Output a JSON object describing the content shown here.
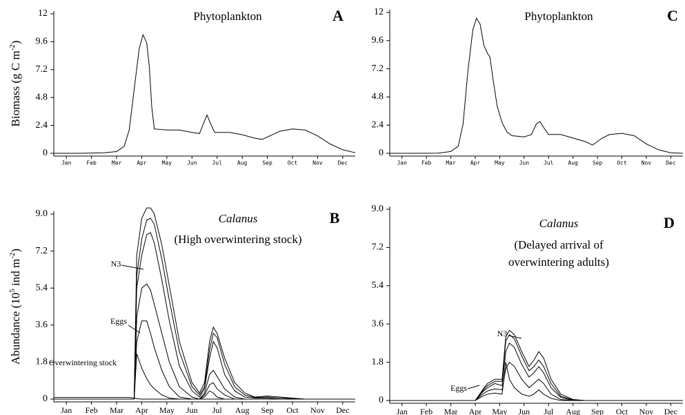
{
  "chart_data": [
    {
      "type": "line",
      "panel_label": "A",
      "title": "Phytoplankton",
      "ylabel": [
        "Biomass (g C m",
        "-2",
        ")"
      ],
      "xlim": [
        0,
        12
      ],
      "xticks": [
        {
          "value": 0.5,
          "label": "Jan"
        },
        {
          "value": 1.5,
          "label": "Feb"
        },
        {
          "value": 2.5,
          "label": "Mar"
        },
        {
          "value": 3.5,
          "label": "Apr"
        },
        {
          "value": 4.5,
          "label": "May"
        },
        {
          "value": 5.5,
          "label": "Jun"
        },
        {
          "value": 6.5,
          "label": "Jul"
        },
        {
          "value": 7.5,
          "label": "Aug"
        },
        {
          "value": 8.5,
          "label": "Sep"
        },
        {
          "value": 9.5,
          "label": "Oct"
        },
        {
          "value": 10.5,
          "label": "Nov"
        },
        {
          "value": 11.5,
          "label": "Dec"
        }
      ],
      "ylim": [
        0,
        12
      ],
      "yticks": [
        0,
        2.4,
        4.8,
        7.2,
        9.6,
        12
      ],
      "x": [
        0,
        1,
        2,
        2.5,
        2.8,
        3.0,
        3.2,
        3.4,
        3.55,
        3.7,
        3.8,
        3.9,
        4.0,
        4.5,
        5.0,
        5.5,
        5.8,
        6.0,
        6.1,
        6.25,
        6.4,
        7.0,
        7.5,
        8.0,
        8.3,
        8.7,
        9.0,
        9.5,
        10.0,
        10.5,
        11.0,
        11.5,
        12
      ],
      "series": [
        {
          "color": "#000000",
          "values": [
            0,
            0,
            0.05,
            0.15,
            0.6,
            2,
            5.5,
            9,
            10.2,
            9.5,
            7.5,
            4,
            2.1,
            2.0,
            2.0,
            1.8,
            1.7,
            2.8,
            3.3,
            2.5,
            1.8,
            1.8,
            1.6,
            1.3,
            1.2,
            1.6,
            1.9,
            2.1,
            2.0,
            1.5,
            0.8,
            0.3,
            0.05
          ]
        }
      ]
    },
    {
      "type": "line",
      "panel_label": "B",
      "title": "Calanus",
      "subtitle": [
        "(High overwintering stock)"
      ],
      "ylabel": [
        "Abundance (10",
        "5",
        " ind m",
        "-2",
        ")"
      ],
      "xlim": [
        0,
        12
      ],
      "xticks": [
        {
          "value": 0.5,
          "label": "Jan"
        },
        {
          "value": 1.5,
          "label": "Feb"
        },
        {
          "value": 2.5,
          "label": "Mar"
        },
        {
          "value": 3.5,
          "label": "Apr"
        },
        {
          "value": 4.5,
          "label": "May"
        },
        {
          "value": 5.5,
          "label": "Jun"
        },
        {
          "value": 6.5,
          "label": "Jul"
        },
        {
          "value": 7.5,
          "label": "Aug"
        },
        {
          "value": 8.5,
          "label": "Sep"
        },
        {
          "value": 9.5,
          "label": "Oct"
        },
        {
          "value": 10.5,
          "label": "Nov"
        },
        {
          "value": 11.5,
          "label": "Dec"
        }
      ],
      "ylim": [
        0,
        9
      ],
      "yticks": [
        0,
        1.8,
        3.6,
        5.4,
        7.2,
        {
          "value": 9,
          "label": "9.0"
        }
      ],
      "x": [
        0,
        1,
        2,
        3,
        3.2,
        3.3,
        3.5,
        3.7,
        3.85,
        4.0,
        4.3,
        4.6,
        5.0,
        5.5,
        5.8,
        6.0,
        6.2,
        6.35,
        6.5,
        6.8,
        7.2,
        7.6,
        8.0,
        8.5,
        9.0,
        10,
        11,
        12
      ],
      "series": [
        {
          "color": "#000000",
          "values": [
            0,
            0,
            0,
            0,
            0,
            7.0,
            8.8,
            9.3,
            9.3,
            9.0,
            7.5,
            5.5,
            2.8,
            0.8,
            0.3,
            0.8,
            2.8,
            3.5,
            3.2,
            2.0,
            0.8,
            0.3,
            0.1,
            0.15,
            0.1,
            0,
            0,
            0
          ]
        },
        {
          "color": "#000000",
          "values": [
            0,
            0,
            0,
            0,
            0,
            6.0,
            7.8,
            8.7,
            8.8,
            8.5,
            6.8,
            4.8,
            2.3,
            0.6,
            0.2,
            0.6,
            2.4,
            3.2,
            3.0,
            1.7,
            0.6,
            0.2,
            0.08,
            0.1,
            0.05,
            0,
            0,
            0
          ]
        },
        {
          "name": "N3",
          "color": "#000000",
          "values": [
            0,
            0,
            0,
            0,
            0,
            5.4,
            7.0,
            8.0,
            8.1,
            7.6,
            5.8,
            3.8,
            1.6,
            0.4,
            0.1,
            0.5,
            2.0,
            2.8,
            2.5,
            1.2,
            0.4,
            0.1,
            0.05,
            0.05,
            0,
            0,
            0,
            0
          ]
        },
        {
          "color": "#000000",
          "values": [
            0,
            0,
            0,
            0,
            0,
            4.0,
            5.4,
            5.6,
            5.3,
            4.6,
            3.2,
            1.8,
            0.6,
            0.1,
            0,
            0.3,
            1.2,
            1.4,
            1.1,
            0.5,
            0.1,
            0,
            0,
            0,
            0,
            0,
            0,
            0
          ]
        },
        {
          "color": "#000000",
          "values": [
            0,
            0,
            0,
            0,
            0,
            2.8,
            3.8,
            3.8,
            3.2,
            2.5,
            1.4,
            0.6,
            0.1,
            0,
            0,
            0.2,
            0.7,
            0.8,
            0.5,
            0.2,
            0,
            0,
            0,
            0,
            0,
            0,
            0,
            0
          ]
        },
        {
          "name": "Eggs",
          "color": "#000000",
          "values": [
            0,
            0,
            0,
            0,
            0,
            2.2,
            1.5,
            1.0,
            0.7,
            0.5,
            0.2,
            0.05,
            0,
            0,
            0,
            0.1,
            0.4,
            0.3,
            0.1,
            0,
            0,
            0,
            0,
            0,
            0,
            0,
            0,
            0
          ]
        },
        {
          "name": "Overwintering stock",
          "color": "#000000",
          "values": [
            0.08,
            0.08,
            0.08,
            0.08,
            0.05,
            0.02,
            0,
            0,
            0,
            0,
            0,
            0,
            0,
            0,
            0,
            0,
            0,
            0,
            0,
            0,
            0,
            0,
            0,
            0,
            0,
            0,
            0,
            0
          ]
        }
      ]
    },
    {
      "type": "line",
      "panel_label": "C",
      "title": "Phytoplankton",
      "xlim": [
        0,
        12
      ],
      "xticks": [
        {
          "value": 0.5,
          "label": "Jan"
        },
        {
          "value": 1.5,
          "label": "Feb"
        },
        {
          "value": 2.5,
          "label": "Mar"
        },
        {
          "value": 3.5,
          "label": "Apr"
        },
        {
          "value": 4.5,
          "label": "May"
        },
        {
          "value": 5.5,
          "label": "Jun"
        },
        {
          "value": 6.5,
          "label": "Jul"
        },
        {
          "value": 7.5,
          "label": "Aug"
        },
        {
          "value": 8.5,
          "label": "Sep"
        },
        {
          "value": 9.5,
          "label": "Oct"
        },
        {
          "value": 10.5,
          "label": "Nov"
        },
        {
          "value": 11.5,
          "label": "Dec"
        }
      ],
      "ylim": [
        0,
        12
      ],
      "yticks": [
        0,
        2.4,
        4.8,
        7.2,
        9.6,
        12
      ],
      "x": [
        0,
        1,
        2,
        2.5,
        2.8,
        3.0,
        3.2,
        3.4,
        3.55,
        3.7,
        3.85,
        4.0,
        4.1,
        4.25,
        4.4,
        4.6,
        4.8,
        5.0,
        5.5,
        5.8,
        6.0,
        6.15,
        6.3,
        6.5,
        7.0,
        7.5,
        8.0,
        8.3,
        8.7,
        9.0,
        9.5,
        10.0,
        10.5,
        11.0,
        11.5,
        12
      ],
      "series": [
        {
          "color": "#000000",
          "values": [
            0,
            0,
            0.02,
            0.15,
            0.6,
            2.5,
            7,
            10.5,
            11.5,
            11,
            9.2,
            8.5,
            8.2,
            6,
            4,
            2.6,
            1.8,
            1.5,
            1.4,
            1.6,
            2.5,
            2.7,
            2.2,
            1.6,
            1.6,
            1.3,
            1.0,
            0.7,
            1.3,
            1.6,
            1.7,
            1.5,
            0.8,
            0.3,
            0.05,
            0
          ]
        }
      ]
    },
    {
      "type": "line",
      "panel_label": "D",
      "title": "Calanus",
      "subtitle": [
        "(Delayed arrival of",
        "overwintering adults)"
      ],
      "xlim": [
        0,
        12
      ],
      "xticks": [
        {
          "value": 0.5,
          "label": "Jan"
        },
        {
          "value": 1.5,
          "label": "Feb"
        },
        {
          "value": 2.5,
          "label": "Mar"
        },
        {
          "value": 3.5,
          "label": "Apr"
        },
        {
          "value": 4.5,
          "label": "May"
        },
        {
          "value": 5.5,
          "label": "Jun"
        },
        {
          "value": 6.5,
          "label": "Jul"
        },
        {
          "value": 7.5,
          "label": "Aug"
        },
        {
          "value": 8.5,
          "label": "Sep"
        },
        {
          "value": 9.5,
          "label": "Oct"
        },
        {
          "value": 10.5,
          "label": "Nov"
        },
        {
          "value": 11.5,
          "label": "Dec"
        }
      ],
      "ylim": [
        0,
        9
      ],
      "yticks": [
        0,
        1.8,
        3.6,
        5.4,
        7.2,
        {
          "value": 9,
          "label": "9.0"
        }
      ],
      "x": [
        0,
        1,
        2,
        3,
        3.5,
        3.8,
        4.0,
        4.3,
        4.6,
        4.75,
        4.9,
        5.1,
        5.4,
        5.7,
        5.9,
        6.1,
        6.3,
        6.6,
        7.0,
        7.5,
        8,
        9,
        10,
        11,
        12
      ],
      "series": [
        {
          "color": "#000000",
          "values": [
            0,
            0,
            0,
            0,
            0,
            0.5,
            0.8,
            1.0,
            1.0,
            3.0,
            3.3,
            3.1,
            2.3,
            1.6,
            1.9,
            2.3,
            2.0,
            1.0,
            0.3,
            0.05,
            0,
            0,
            0,
            0,
            0
          ]
        },
        {
          "color": "#000000",
          "values": [
            0,
            0,
            0,
            0,
            0,
            0.45,
            0.7,
            0.9,
            0.9,
            2.8,
            3.1,
            2.9,
            2.1,
            1.4,
            1.6,
            1.9,
            1.6,
            0.8,
            0.2,
            0.03,
            0,
            0,
            0,
            0,
            0
          ]
        },
        {
          "name": "N3",
          "color": "#000000",
          "values": [
            0,
            0,
            0,
            0,
            0,
            0.4,
            0.6,
            0.8,
            0.7,
            2.3,
            2.7,
            2.5,
            1.7,
            1.1,
            1.3,
            1.6,
            1.3,
            0.6,
            0.15,
            0,
            0,
            0,
            0,
            0,
            0
          ]
        },
        {
          "color": "#000000",
          "values": [
            0,
            0,
            0,
            0,
            0,
            0.3,
            0.45,
            0.55,
            0.5,
            1.5,
            1.8,
            1.6,
            1.0,
            0.6,
            0.8,
            1.0,
            0.8,
            0.3,
            0.05,
            0,
            0,
            0,
            0,
            0,
            0
          ]
        },
        {
          "name": "Eggs",
          "color": "#000000",
          "values": [
            0,
            0,
            0,
            0,
            0,
            0.2,
            0.3,
            0.35,
            0.3,
            1.8,
            1.0,
            0.6,
            0.3,
            0.2,
            0.3,
            0.5,
            0.3,
            0.1,
            0,
            0,
            0,
            0,
            0,
            0,
            0
          ]
        }
      ]
    }
  ]
}
